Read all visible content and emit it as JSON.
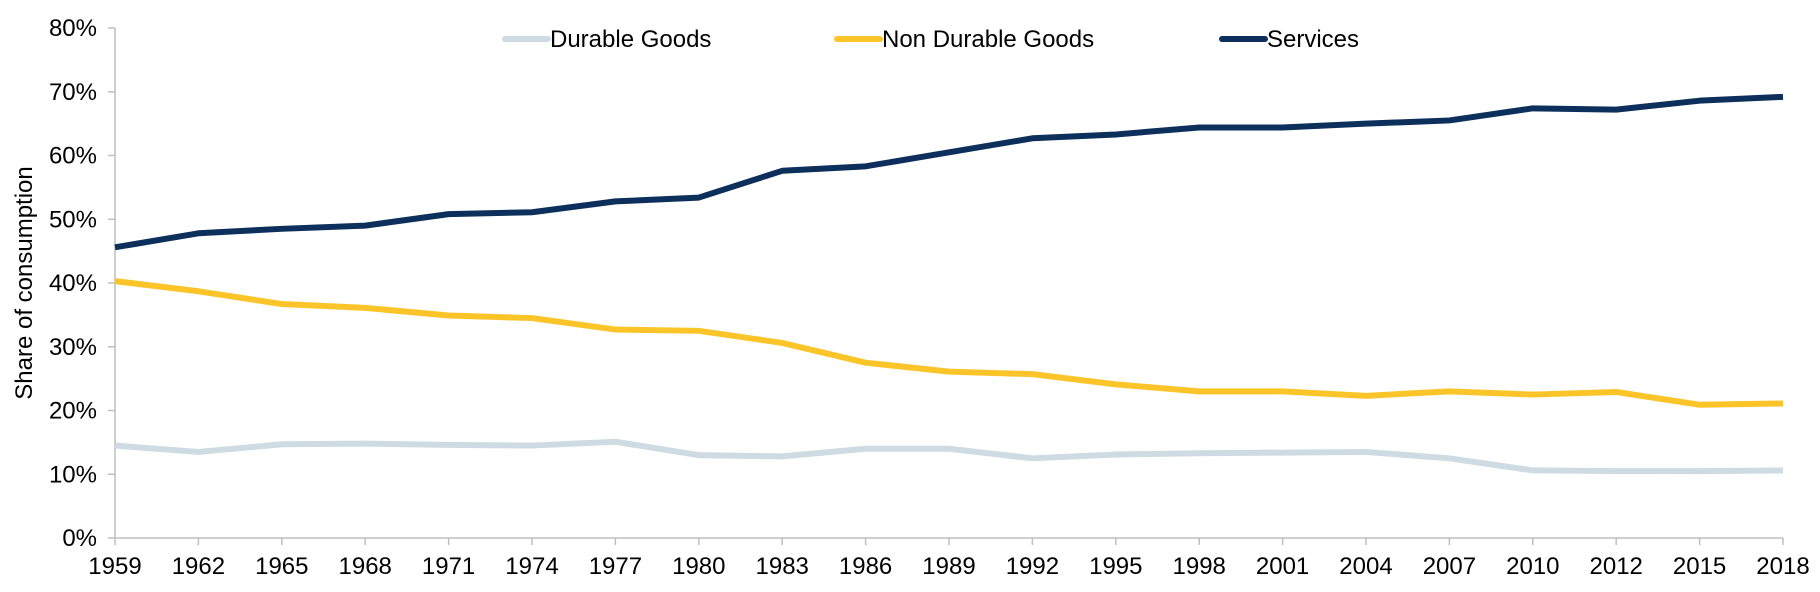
{
  "chart_data": {
    "type": "line",
    "title": "",
    "xlabel": "",
    "ylabel": "Share of consumption",
    "ylim": [
      0,
      80
    ],
    "y_ticks": [
      "0%",
      "10%",
      "20%",
      "30%",
      "40%",
      "50%",
      "60%",
      "70%",
      "80%"
    ],
    "y_tick_values": [
      0,
      10,
      20,
      30,
      40,
      50,
      60,
      70,
      80
    ],
    "categories": [
      "1959",
      "1962",
      "1965",
      "1968",
      "1971",
      "1974",
      "1977",
      "1980",
      "1983",
      "1986",
      "1989",
      "1992",
      "1995",
      "1998",
      "2001",
      "2004",
      "2007",
      "2010",
      "2012",
      "2015",
      "2018"
    ],
    "grid": false,
    "legend_position": "top",
    "series": [
      {
        "name": "Durable Goods",
        "color": "#cfdbe2",
        "values": [
          14.5,
          13.5,
          14.7,
          14.8,
          14.6,
          14.5,
          15.1,
          13.0,
          12.8,
          14.0,
          14.0,
          12.5,
          13.1,
          13.3,
          13.4,
          13.5,
          12.5,
          10.6,
          10.5,
          10.5,
          10.6
        ]
      },
      {
        "name": "Non Durable Goods",
        "color": "#fbc52a",
        "values": [
          40.3,
          38.7,
          36.7,
          36.1,
          34.9,
          34.5,
          32.7,
          32.5,
          30.6,
          27.5,
          26.1,
          25.7,
          24.1,
          23.0,
          23.0,
          22.3,
          23.0,
          22.5,
          22.9,
          20.9,
          21.1
        ]
      },
      {
        "name": "Services",
        "color": "#0c2f5c",
        "values": [
          45.6,
          47.8,
          48.5,
          49.0,
          50.8,
          51.1,
          52.8,
          53.4,
          57.6,
          58.3,
          60.5,
          62.7,
          63.3,
          64.4,
          64.4,
          65.0,
          65.5,
          67.4,
          67.2,
          68.6,
          69.2
        ]
      }
    ]
  }
}
